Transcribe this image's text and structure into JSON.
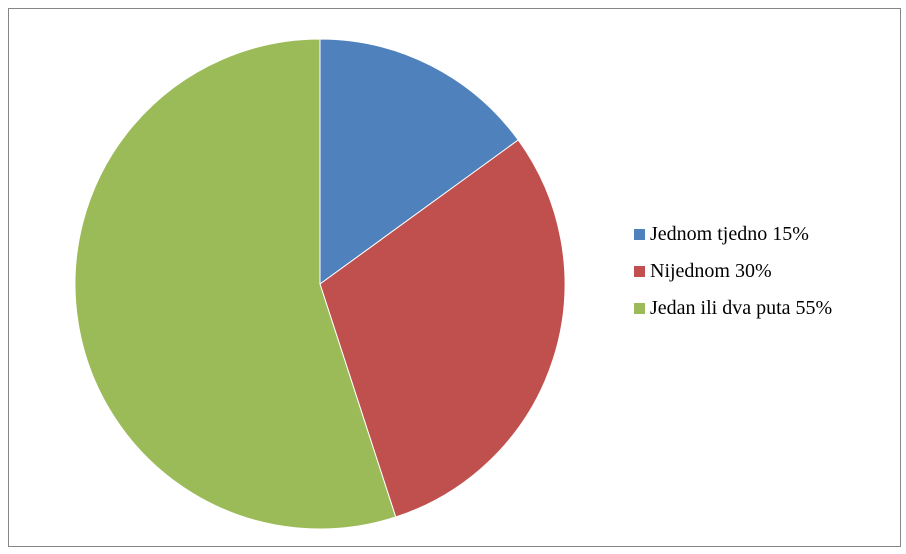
{
  "chart_data": {
    "type": "pie",
    "title": "",
    "legend_position": "right",
    "slices": [
      {
        "label": "Jednom tjedno 15%",
        "value": 15,
        "color": "#4F81BD"
      },
      {
        "label": "Nijednom 30%",
        "value": 30,
        "color": "#C0504D"
      },
      {
        "label": "Jedan ili dva puta 55%",
        "value": 55,
        "color": "#9BBB59"
      }
    ]
  }
}
